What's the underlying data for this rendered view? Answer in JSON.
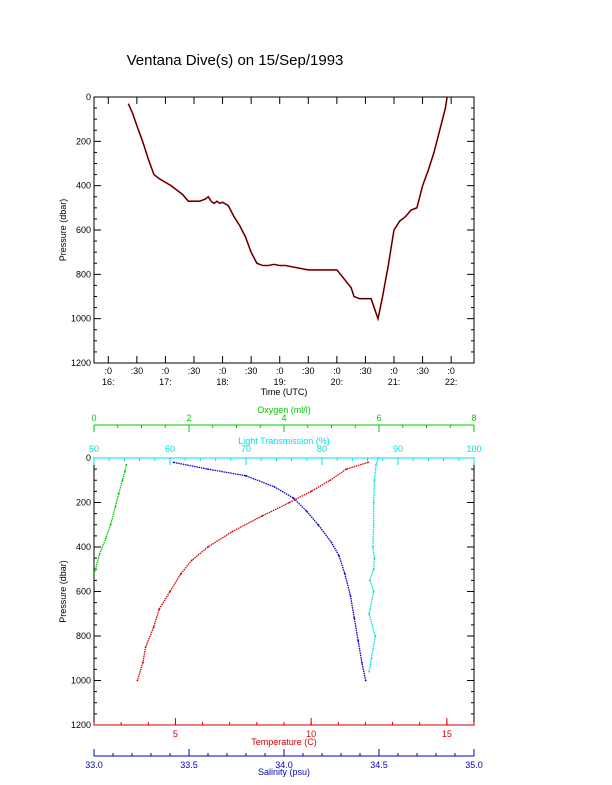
{
  "title": "Ventana Dive(s) on 15/Sep/1993",
  "colors": {
    "axis": "#000000",
    "oxygen": "#00c800",
    "light": "#00e0e0",
    "temperature": "#d00000",
    "salinity": "#0000c0",
    "trace_dots": "#c00000",
    "trace_line": "#000000"
  },
  "chart_data": [
    {
      "type": "line",
      "xlabel": "Time (UTC)",
      "ylabel": "Pressure (dbar)",
      "xlim": [
        15.75,
        22.4
      ],
      "ylim": [
        0,
        1200
      ],
      "y_inverted": true,
      "yticks": [
        0,
        200,
        400,
        600,
        800,
        1000,
        1200
      ],
      "ytick_labels": [
        "0",
        "200",
        "400",
        "600",
        "800",
        "1000",
        "1200"
      ],
      "xticks": [
        {
          "x": 16.0,
          "top": ":0",
          "bottom": "16:"
        },
        {
          "x": 16.5,
          "top": ":30",
          "bottom": ""
        },
        {
          "x": 17.0,
          "top": ":0",
          "bottom": "17:"
        },
        {
          "x": 17.5,
          "top": ":30",
          "bottom": ""
        },
        {
          "x": 18.0,
          "top": ":0",
          "bottom": "18:"
        },
        {
          "x": 18.5,
          "top": ":30",
          "bottom": ""
        },
        {
          "x": 19.0,
          "top": ":0",
          "bottom": "19:"
        },
        {
          "x": 19.5,
          "top": ":30",
          "bottom": ""
        },
        {
          "x": 20.0,
          "top": ":0",
          "bottom": "20:"
        },
        {
          "x": 20.5,
          "top": ":30",
          "bottom": ""
        },
        {
          "x": 21.0,
          "top": ":0",
          "bottom": "21:"
        },
        {
          "x": 21.5,
          "top": ":30",
          "bottom": ""
        },
        {
          "x": 22.0,
          "top": ":0",
          "bottom": "22:"
        }
      ],
      "series": [
        {
          "x": [
            16.35,
            16.42,
            16.5,
            16.6,
            16.7,
            16.8,
            16.9,
            17.0,
            17.1,
            17.2,
            17.3,
            17.4,
            17.5,
            17.6,
            17.7,
            17.75,
            17.8,
            17.85,
            17.9,
            17.95,
            18.0,
            18.1,
            18.2,
            18.3,
            18.4,
            18.5,
            18.6,
            18.7,
            18.8,
            18.9,
            19.0,
            19.1,
            19.5,
            19.6,
            19.8,
            20.0,
            20.25,
            20.3,
            20.4,
            20.6,
            20.72,
            20.8,
            20.85,
            20.9,
            20.95,
            21.0,
            21.1,
            21.2,
            21.3,
            21.4,
            21.5,
            21.6,
            21.7,
            21.8,
            21.9,
            21.93
          ],
          "y": [
            30,
            70,
            130,
            200,
            280,
            350,
            370,
            385,
            400,
            420,
            440,
            470,
            470,
            470,
            460,
            450,
            470,
            480,
            470,
            480,
            475,
            490,
            540,
            580,
            630,
            700,
            750,
            760,
            760,
            755,
            760,
            760,
            780,
            780,
            780,
            780,
            860,
            900,
            910,
            910,
            1000,
            900,
            830,
            760,
            680,
            600,
            560,
            540,
            510,
            500,
            400,
            330,
            250,
            150,
            50,
            0
          ]
        }
      ]
    },
    {
      "type": "scatter",
      "ylabel": "Pressure (dbar)",
      "ylim": [
        0,
        1200
      ],
      "y_inverted": true,
      "yticks": [
        0,
        200,
        400,
        600,
        800,
        1000,
        1200
      ],
      "ytick_labels": [
        "0",
        "200",
        "400",
        "600",
        "800",
        "1000",
        "1200"
      ],
      "axes": {
        "oxygen": {
          "label": "Oxygen (ml/l)",
          "lim": [
            0,
            8
          ],
          "ticks": [
            0,
            2,
            4,
            6,
            8
          ],
          "tick_labels": [
            "0",
            "2",
            "4",
            "6",
            "8"
          ]
        },
        "light": {
          "label": "Light Transmission (%)",
          "lim": [
            50,
            100
          ],
          "ticks": [
            50,
            60,
            70,
            80,
            90,
            100
          ],
          "tick_labels": [
            "50",
            "60",
            "70",
            "80",
            "90",
            "100"
          ]
        },
        "temperature": {
          "label": "Temperature (C)",
          "lim": [
            2,
            16
          ],
          "ticks": [
            5,
            10,
            15
          ],
          "tick_labels": [
            "5",
            "10",
            "15"
          ]
        },
        "salinity": {
          "label": "Salinity (psu)",
          "lim": [
            33.0,
            35.0
          ],
          "ticks": [
            33.0,
            33.5,
            34.0,
            34.5,
            35.0
          ],
          "tick_labels": [
            "33.0",
            "33.5",
            "34.0",
            "34.5",
            "35.0"
          ]
        }
      },
      "series": [
        {
          "key": "oxygen",
          "x": [
            0.68,
            0.65,
            0.6,
            0.52,
            0.45,
            0.35,
            0.25,
            0.12,
            0.03,
            0.0
          ],
          "y": [
            30,
            60,
            100,
            160,
            220,
            300,
            360,
            430,
            500,
            520
          ]
        },
        {
          "key": "light",
          "x": [
            87.4,
            87.1,
            86.9,
            86.8,
            86.8,
            86.7,
            86.9,
            86.8,
            86.3,
            86.8,
            86.2,
            87.0,
            86.5,
            86.2
          ],
          "y": [
            0,
            30,
            100,
            200,
            300,
            400,
            450,
            500,
            550,
            600,
            700,
            800,
            900,
            960
          ]
        },
        {
          "key": "temperature",
          "x": [
            12.1,
            11.3,
            10.7,
            10.0,
            9.2,
            8.2,
            7.1,
            6.2,
            5.6,
            5.2,
            4.8,
            4.4,
            4.2,
            3.9,
            3.8,
            3.6
          ],
          "y": [
            20,
            50,
            100,
            150,
            200,
            260,
            330,
            400,
            460,
            520,
            600,
            680,
            760,
            850,
            920,
            1000
          ]
        },
        {
          "key": "salinity",
          "x": [
            33.42,
            33.6,
            33.8,
            33.95,
            34.05,
            34.12,
            34.18,
            34.25,
            34.29,
            34.32,
            34.35,
            34.37,
            34.39,
            34.41,
            34.43
          ],
          "y": [
            20,
            50,
            80,
            130,
            180,
            240,
            300,
            380,
            440,
            520,
            620,
            720,
            820,
            920,
            1000
          ]
        }
      ]
    }
  ]
}
